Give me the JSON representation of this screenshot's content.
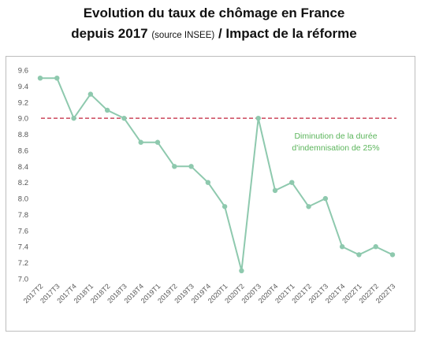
{
  "title_line1": "Evolution du taux de chômage en France",
  "title_line2_main": "depuis 2017",
  "title_line2_source": "(source INSEE)",
  "title_line2_rest": "/ Impact de la réforme",
  "chart_data": {
    "type": "line",
    "categories": [
      "2017T2",
      "2017T3",
      "2017T4",
      "2018T1",
      "2018T2",
      "2018T3",
      "2018T4",
      "2019T1",
      "2019T2",
      "2019T3",
      "2019T4",
      "2020T1",
      "2020T2",
      "2020T3",
      "2020T4",
      "2021T1",
      "2021T2",
      "2021T3",
      "2021T4",
      "2022T1",
      "2022T2",
      "2022T3"
    ],
    "series": [
      {
        "values": [
          9.5,
          9.5,
          9.0,
          9.3,
          9.1,
          9.0,
          8.7,
          8.7,
          8.4,
          8.4,
          8.2,
          7.9,
          7.1,
          9.0,
          8.1,
          8.2,
          7.9,
          8.0,
          7.4,
          7.3,
          7.4,
          7.3
        ]
      }
    ],
    "yticks": [
      7.0,
      7.2,
      7.4,
      7.6,
      7.8,
      8.0,
      8.2,
      8.4,
      8.6,
      8.8,
      9.0,
      9.2,
      9.4,
      9.6
    ],
    "ylim": [
      7.0,
      9.6
    ],
    "reference_line": {
      "value": 9.0,
      "color": "#c0223b",
      "style": "dashed"
    },
    "annotation": {
      "line1": "Diminution de la durée",
      "line2": "d'indemnisation de 25%",
      "color": "#5bb55b"
    },
    "line_color": "#8ec9ae",
    "grid": false
  }
}
